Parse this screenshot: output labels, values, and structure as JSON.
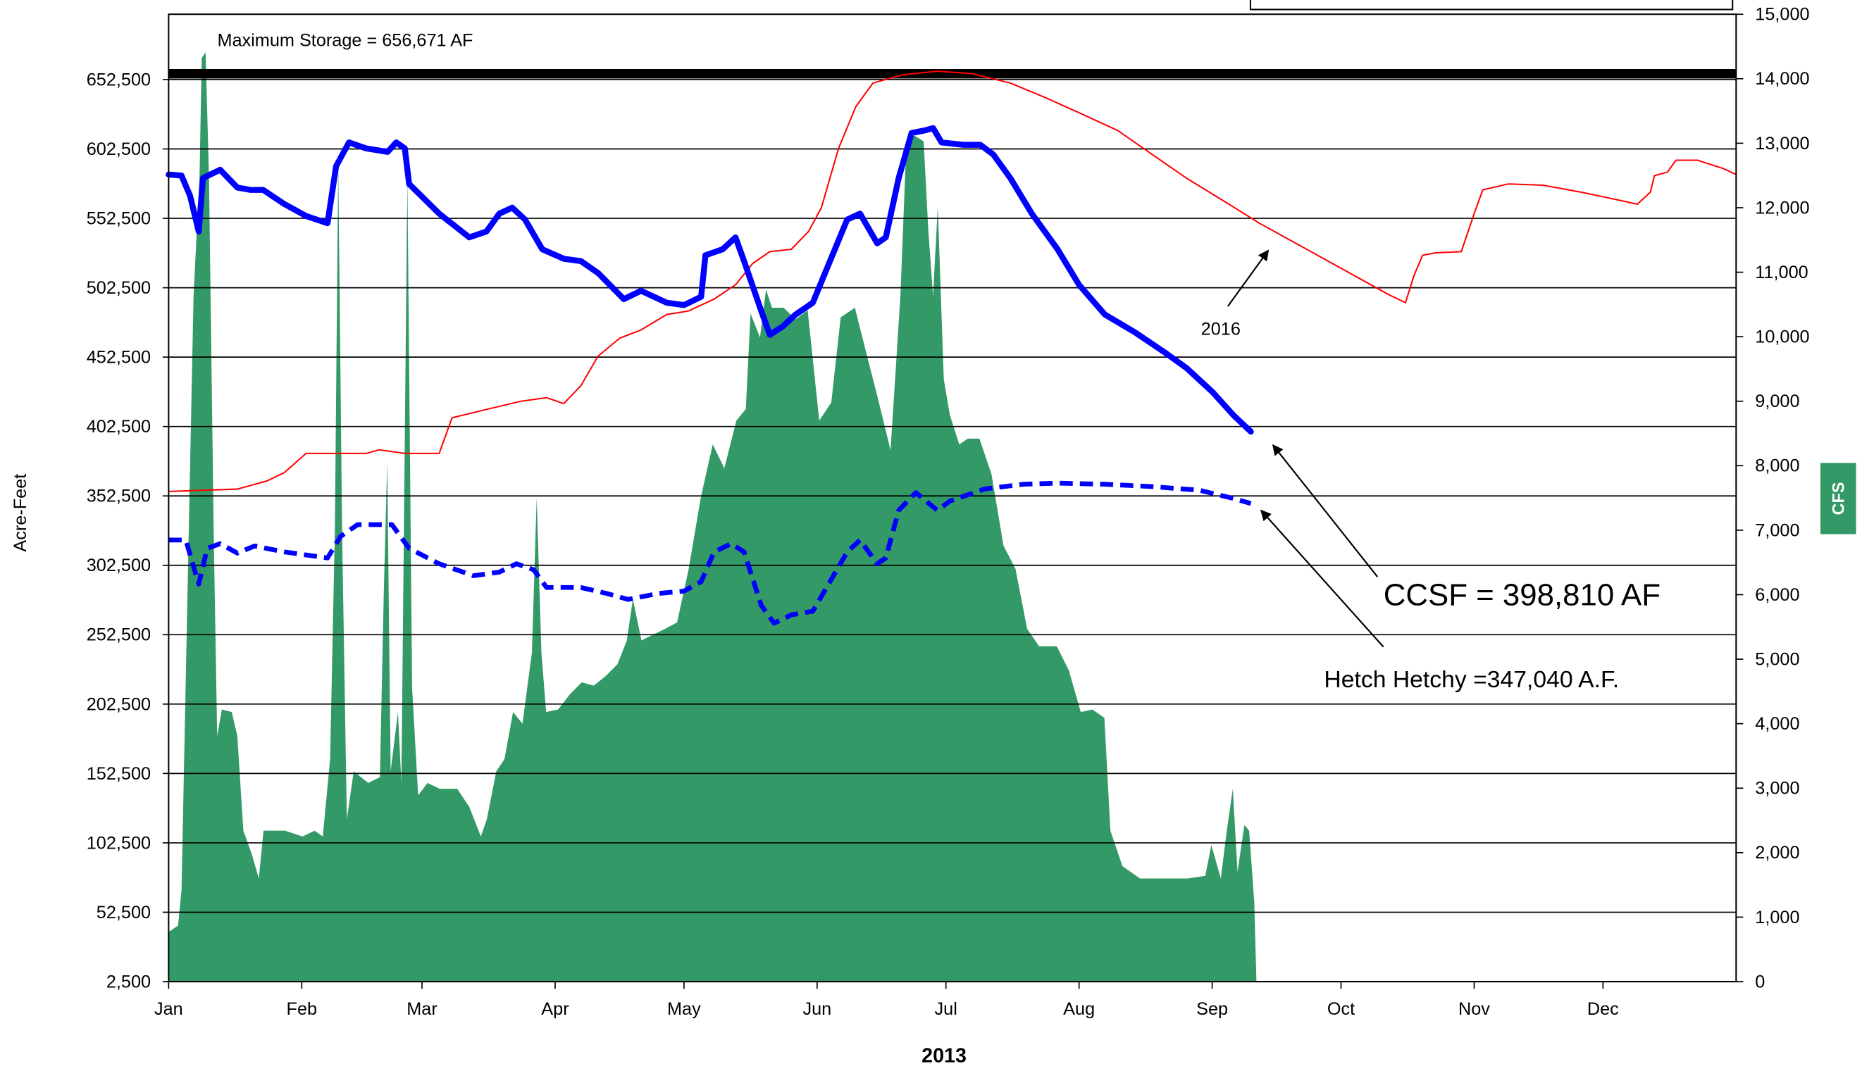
{
  "chart_data": {
    "type": "line",
    "xlabel": "2013",
    "ylabel": "Acre-Feet",
    "y2label": "CFS",
    "xlim": [
      0,
      365
    ],
    "xticks": [
      {
        "value": 0,
        "label": "Jan"
      },
      {
        "value": 31,
        "label": "Feb"
      },
      {
        "value": 59,
        "label": "Mar"
      },
      {
        "value": 90,
        "label": "Apr"
      },
      {
        "value": 120,
        "label": "May"
      },
      {
        "value": 151,
        "label": "Jun"
      },
      {
        "value": 181,
        "label": "Jul"
      },
      {
        "value": 212,
        "label": "Aug"
      },
      {
        "value": 243,
        "label": "Sep"
      },
      {
        "value": 273,
        "label": "Oct"
      },
      {
        "value": 304,
        "label": "Nov"
      },
      {
        "value": 334,
        "label": "Dec"
      }
    ],
    "ylim": [
      2500,
      699570
    ],
    "yticks": [
      {
        "value": 2500,
        "label": "2,500"
      },
      {
        "value": 52500,
        "label": "52,500"
      },
      {
        "value": 102500,
        "label": "102,500"
      },
      {
        "value": 152500,
        "label": "152,500"
      },
      {
        "value": 202500,
        "label": "202,500"
      },
      {
        "value": 252500,
        "label": "252,500"
      },
      {
        "value": 302500,
        "label": "302,500"
      },
      {
        "value": 352500,
        "label": "352,500"
      },
      {
        "value": 402500,
        "label": "402,500"
      },
      {
        "value": 452500,
        "label": "452,500"
      },
      {
        "value": 502500,
        "label": "502,500"
      },
      {
        "value": 552500,
        "label": "552,500"
      },
      {
        "value": 602500,
        "label": "602,500"
      },
      {
        "value": 652500,
        "label": "652,500"
      }
    ],
    "y2lim": [
      0,
      15000
    ],
    "y2ticks": [
      0,
      {
        "value": 1000,
        "label": "1,000"
      },
      {
        "value": 2000,
        "label": "2,000"
      },
      {
        "value": 3000,
        "label": "3,000"
      },
      {
        "value": 4000,
        "label": "4,000"
      },
      {
        "value": 5000,
        "label": "5,000"
      },
      {
        "value": 6000,
        "label": "6,000"
      },
      {
        "value": 7000,
        "label": "7,000"
      },
      {
        "value": 8000,
        "label": "8,000"
      },
      {
        "value": 9000,
        "label": "9,000"
      },
      {
        "value": 10000,
        "label": "10,000"
      },
      {
        "value": 11000,
        "label": "11,000"
      },
      {
        "value": 12000,
        "label": "12,000"
      },
      {
        "value": 13000,
        "label": "13,000"
      },
      {
        "value": 14000,
        "label": "14,000"
      },
      {
        "value": 15000,
        "label": "15,000"
      }
    ],
    "grid": true,
    "annotations": [
      {
        "text": "Maximum Storage = 656,671 AF",
        "value": 656671
      },
      {
        "text": "2016"
      },
      {
        "text": "CCSF = 398,810 AF"
      },
      {
        "text": "Hetch Hetchy =347,040 A.F."
      }
    ],
    "series": [
      {
        "style": "area",
        "axis": "y2",
        "color": "#339966",
        "x": [
          0,
          2.2,
          3.0,
          4.4,
          5.8,
          7.2,
          7.7,
          8.6,
          9.4,
          10.5,
          11.3,
          12.4,
          14.7,
          16.0,
          17.4,
          19.4,
          21.0,
          22.1,
          24.3,
          27.1,
          31.2,
          34.0,
          35.9,
          37.6,
          38.7,
          39.5,
          40.4,
          41.5,
          43.1,
          46.5,
          49.2,
          50.1,
          50.9,
          51.7,
          53.4,
          54.2,
          55.6,
          56.7,
          58.1,
          60.3,
          63.1,
          67.2,
          70.0,
          72.7,
          74.1,
          76.3,
          78.2,
          80.2,
          82.4,
          84.6,
          85.7,
          86.8,
          87.9,
          90.7,
          93.5,
          96.2,
          99.0,
          101.8,
          104.5,
          106.7,
          108.1,
          110.1,
          112.8,
          115.6,
          118.4,
          121.1,
          123.9,
          126.7,
          129.4,
          132.2,
          134.4,
          135.5,
          137.7,
          139.1,
          140.5,
          143.2,
          146.0,
          148.8,
          151.5,
          154.3,
          156.5,
          159.8,
          162.6,
          165.4,
          168.1,
          170.4,
          171.7,
          173.6,
          175.8,
          176.9,
          178.0,
          179.1,
          180.5,
          181.9,
          184.1,
          186.1,
          188.8,
          191.6,
          194.4,
          197.2,
          199.9,
          202.7,
          206.8,
          209.6,
          212.4,
          215.1,
          217.9,
          219.3,
          222.1,
          226.2,
          230.4,
          237.3,
          241.4,
          242.8,
          245.0,
          246.4,
          247.8,
          248.9,
          250.5,
          251.6,
          252.8,
          253.3
        ],
        "values": [
          770,
          870,
          1420,
          6030,
          10630,
          12480,
          14320,
          14410,
          12480,
          6950,
          3810,
          4220,
          4180,
          3810,
          2340,
          1970,
          1600,
          2340,
          2340,
          2340,
          2250,
          2340,
          2250,
          3450,
          6950,
          12660,
          6950,
          2520,
          3260,
          3080,
          3170,
          6030,
          8050,
          3260,
          4180,
          3080,
          12480,
          4550,
          2890,
          3080,
          2990,
          2990,
          2710,
          2250,
          2520,
          3260,
          3450,
          4180,
          4000,
          5110,
          7500,
          5110,
          4180,
          4220,
          4460,
          4640,
          4590,
          4740,
          4920,
          5290,
          5930,
          5290,
          5380,
          5470,
          5570,
          6400,
          7500,
          8330,
          7960,
          8700,
          8880,
          10360,
          9990,
          10730,
          10450,
          10450,
          10270,
          10410,
          8700,
          8980,
          10300,
          10450,
          9710,
          8980,
          8240,
          10630,
          12850,
          13120,
          13030,
          11650,
          10630,
          12020,
          9340,
          8790,
          8330,
          8420,
          8420,
          7870,
          6760,
          6400,
          5470,
          5200,
          5200,
          4830,
          4180,
          4220,
          4090,
          2340,
          1790,
          1600,
          1600,
          1600,
          1640,
          2120,
          1600,
          2340,
          2990,
          1700,
          2430,
          2340,
          1230,
          0
        ]
      },
      {
        "style": "solid",
        "width": 1.2,
        "color": "#ff0000",
        "x": [
          0,
          16,
          23,
          27,
          32,
          46,
          49,
          55,
          63,
          66,
          74,
          82,
          88,
          92,
          96,
          100,
          105,
          110,
          116,
          121,
          127,
          132,
          136,
          140,
          145,
          149,
          152,
          156,
          160,
          164,
          171,
          179,
          187,
          196,
          204,
          212,
          221,
          229,
          237,
          246,
          254,
          265,
          276,
          284,
          288,
          290,
          292,
          295,
          301,
          304,
          306,
          312,
          320,
          329,
          337,
          342,
          345,
          346,
          349,
          351,
          356,
          362,
          365
        ],
        "values": [
          355700,
          357400,
          363400,
          369400,
          383100,
          383100,
          385700,
          383100,
          383100,
          408800,
          414800,
          420700,
          423300,
          419000,
          431900,
          453200,
          466100,
          472100,
          483200,
          485700,
          494300,
          504600,
          520000,
          528500,
          530200,
          543000,
          560200,
          602900,
          632900,
          650000,
          656000,
          658500,
          656800,
          650000,
          639700,
          628600,
          615800,
          598600,
          581500,
          564400,
          549000,
          530200,
          511400,
          497700,
          491700,
          511400,
          525900,
          527700,
          528500,
          555900,
          573000,
          577300,
          576400,
          571300,
          566100,
          562700,
          571300,
          583300,
          585800,
          594400,
          594400,
          588400,
          584100
        ]
      },
      {
        "style": "solid",
        "width": 5,
        "color": "#0000ff",
        "x": [
          0,
          3,
          5,
          7,
          8,
          12,
          16,
          19,
          22,
          27,
          32,
          37,
          39,
          42,
          46,
          51,
          53,
          55,
          56,
          63,
          70,
          74,
          77,
          80,
          83,
          87,
          92,
          96,
          100,
          106,
          110,
          116,
          120,
          124,
          125,
          129,
          132,
          134,
          138,
          140,
          143,
          146,
          150,
          154,
          158,
          161,
          165,
          167,
          170,
          173,
          176,
          178,
          180,
          185,
          189,
          192,
          196,
          201,
          207,
          212,
          218,
          225,
          232,
          237,
          243,
          248,
          252
        ],
        "values": [
          584100,
          583300,
          568700,
          543000,
          581500,
          587500,
          574700,
          573000,
          573000,
          562700,
          554200,
          549000,
          590100,
          607200,
          602900,
          600400,
          607200,
          602900,
          577300,
          555900,
          538800,
          543000,
          555900,
          560200,
          551600,
          530200,
          523400,
          521700,
          513100,
          494300,
          500300,
          491700,
          490000,
          496000,
          525900,
          530200,
          538800,
          521700,
          485700,
          468600,
          474600,
          483200,
          491700,
          521700,
          551600,
          555900,
          534500,
          538800,
          581500,
          614000,
          615800,
          617500,
          607200,
          605500,
          605500,
          598600,
          581500,
          555900,
          530200,
          504600,
          483200,
          470400,
          455800,
          444700,
          427600,
          410500,
          398810
        ]
      },
      {
        "style": "dashed",
        "width": 4,
        "color": "#0000ff",
        "x": [
          0,
          4,
          7,
          9,
          12,
          16,
          20,
          27,
          37,
          40,
          44,
          52,
          56,
          63,
          71,
          77,
          81,
          85,
          88,
          96,
          102,
          107,
          114,
          120,
          124,
          127,
          131,
          134,
          138,
          141,
          145,
          150,
          154,
          158,
          161,
          165,
          167,
          170,
          174,
          179,
          182,
          190,
          199,
          207,
          218,
          229,
          240,
          248,
          252
        ],
        "values": [
          320700,
          320700,
          289000,
          314700,
          318100,
          311300,
          316400,
          312100,
          307800,
          323200,
          331800,
          331800,
          314700,
          303600,
          295000,
          297600,
          303600,
          299300,
          286500,
          286500,
          282200,
          277900,
          282200,
          283900,
          290700,
          312100,
          318100,
          312100,
          273600,
          260800,
          266800,
          269400,
          290700,
          312100,
          320700,
          303600,
          307800,
          342100,
          354900,
          342100,
          348900,
          357500,
          360900,
          361700,
          360900,
          359200,
          356600,
          350600,
          347040
        ]
      }
    ]
  }
}
